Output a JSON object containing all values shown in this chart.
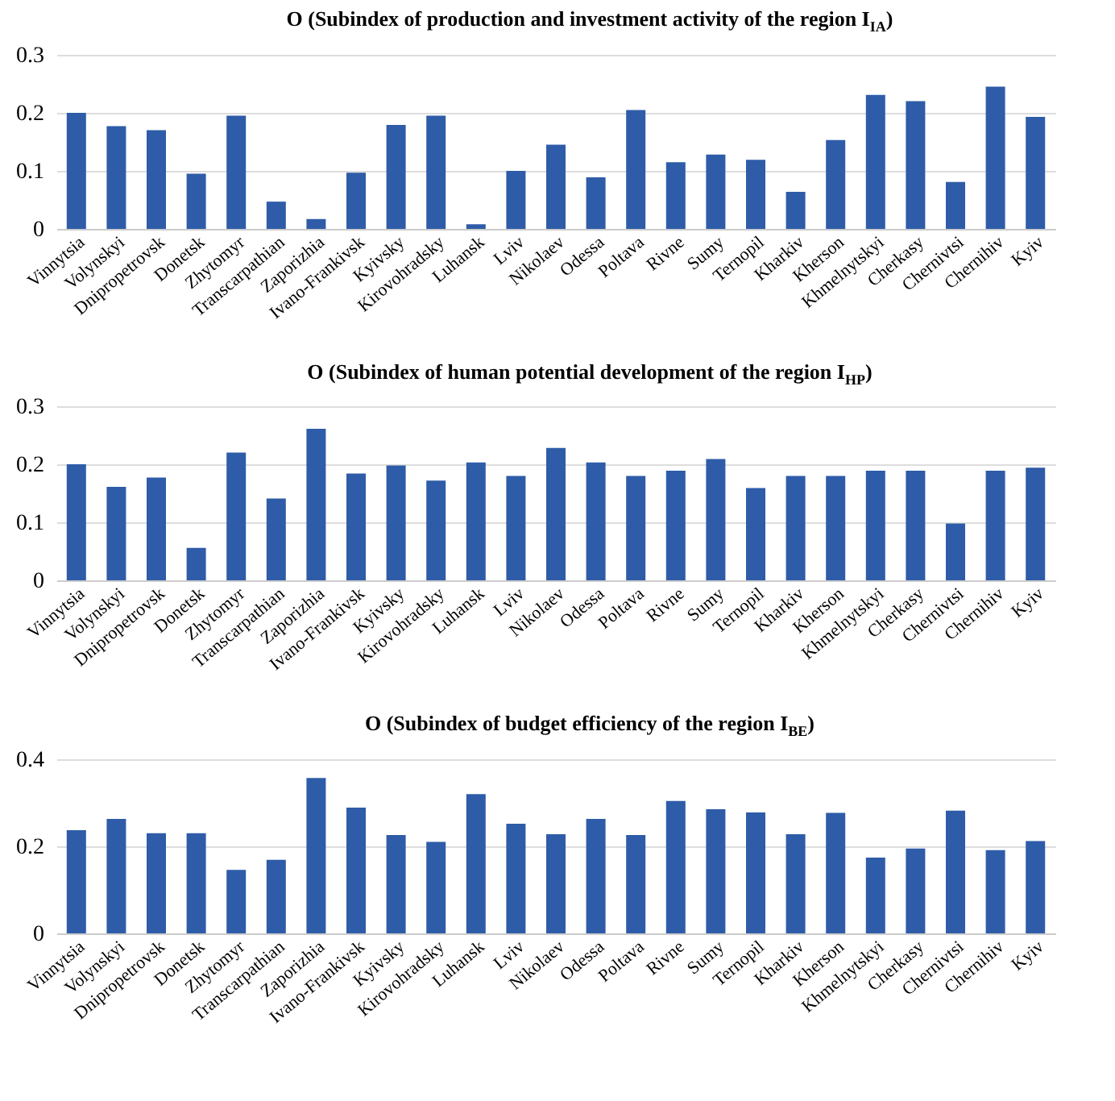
{
  "chart_data": [
    {
      "type": "bar",
      "title": "O (Subindex of production and investment activity of the region I$_{IA}$)",
      "categories": [
        "Vinnytsia",
        "Volynskyi",
        "Dnipropetrovsk",
        "Donetsk",
        "Zhytomyr",
        "Transcarpathian",
        "Zaporizhia",
        "Ivano-Frankivsk",
        "Kyivsky",
        "Kirovohradsky",
        "Luhansk",
        "Lviv",
        "Nikolaev",
        "Odessa",
        "Poltava",
        "Rivne",
        "Sumy",
        "Ternopil",
        "Kharkiv",
        "Kherson",
        "Khmelnytskyi",
        "Cherkasy",
        "Chernivtsi",
        "Chernihiv",
        "Kyiv"
      ],
      "values": [
        0.2,
        0.177,
        0.17,
        0.095,
        0.195,
        0.047,
        0.017,
        0.097,
        0.179,
        0.195,
        0.008,
        0.1,
        0.145,
        0.089,
        0.205,
        0.115,
        0.128,
        0.119,
        0.064,
        0.153,
        0.231,
        0.22,
        0.081,
        0.245,
        0.193
      ],
      "color": "#2e5ca8",
      "ylim": [
        0,
        0.3
      ],
      "yticks": [
        0,
        0.1,
        0.2,
        0.3
      ],
      "grid": "y"
    },
    {
      "type": "bar",
      "title": "O (Subindex of human potential development of the region I$_{HP}$)",
      "categories": [
        "Vinnytsia",
        "Volynskyi",
        "Dnipropetrovsk",
        "Donetsk",
        "Zhytomyr",
        "Transcarpathian",
        "Zaporizhia",
        "Ivano-Frankivsk",
        "Kyivsky",
        "Kirovohradsky",
        "Luhansk",
        "Lviv",
        "Nikolaev",
        "Odessa",
        "Poltava",
        "Rivne",
        "Sumy",
        "Ternopil",
        "Kharkiv",
        "Kherson",
        "Khmelnytskyi",
        "Cherkasy",
        "Chernivtsi",
        "Chernihiv",
        "Kyiv"
      ],
      "values": [
        0.2,
        0.161,
        0.177,
        0.056,
        0.22,
        0.141,
        0.261,
        0.184,
        0.198,
        0.172,
        0.203,
        0.18,
        0.228,
        0.203,
        0.18,
        0.189,
        0.209,
        0.159,
        0.18,
        0.18,
        0.189,
        0.189,
        0.098,
        0.189,
        0.194
      ],
      "color": "#2e5ca8",
      "ylim": [
        0,
        0.3
      ],
      "yticks": [
        0,
        0.1,
        0.2,
        0.3
      ],
      "grid": "y"
    },
    {
      "type": "bar",
      "title": "O (Subindex of budget efficiency of the region I$_{BE}$)",
      "categories": [
        "Vinnytsia",
        "Volynskyi",
        "Dnipropetrovsk",
        "Donetsk",
        "Zhytomyr",
        "Transcarpathian",
        "Zaporizhia",
        "Ivano-Frankivsk",
        "Kyivsky",
        "Kirovohradsky",
        "Luhansk",
        "Lviv",
        "Nikolaev",
        "Odessa",
        "Poltava",
        "Rivne",
        "Sumy",
        "Ternopil",
        "Kharkiv",
        "Kherson",
        "Khmelnytskyi",
        "Cherkasy",
        "Chernivtsi",
        "Chernihiv",
        "Kyiv"
      ],
      "values": [
        0.237,
        0.263,
        0.23,
        0.23,
        0.146,
        0.169,
        0.357,
        0.289,
        0.226,
        0.21,
        0.32,
        0.252,
        0.228,
        0.263,
        0.226,
        0.304,
        0.285,
        0.278,
        0.228,
        0.277,
        0.174,
        0.195,
        0.282,
        0.191,
        0.212
      ],
      "color": "#2e5ca8",
      "ylim": [
        0,
        0.4
      ],
      "yticks": [
        0,
        0.2,
        0.4
      ],
      "grid": "y"
    }
  ]
}
